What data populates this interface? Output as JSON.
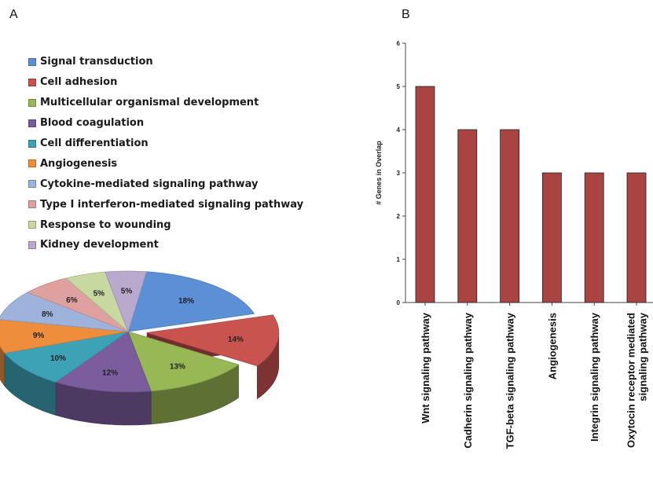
{
  "panel_a_label": "A",
  "panel_b_label": "B",
  "chart_data": [
    {
      "type": "pie",
      "style": "3d-exploded",
      "legend_position": "top",
      "slices": [
        {
          "label": "Signal transduction",
          "value": 18,
          "text": "18%",
          "color": "#5b8fd6"
        },
        {
          "label": "Cell adhesion",
          "value": 14,
          "text": "14%",
          "color": "#c9534f"
        },
        {
          "label": "Multicellular organismal development",
          "value": 13,
          "text": "13%",
          "color": "#98b755"
        },
        {
          "label": "Blood coagulation",
          "value": 12,
          "text": "12%",
          "color": "#7b5d9e"
        },
        {
          "label": "Cell differentiation",
          "value": 10,
          "text": "10%",
          "color": "#3ea2b6"
        },
        {
          "label": "Angiogenesis",
          "value": 9,
          "text": "9%",
          "color": "#ee8e3c"
        },
        {
          "label": "Cytokine-mediated signaling pathway",
          "value": 8,
          "text": "8%",
          "color": "#9db3dc"
        },
        {
          "label": "Type I interferon-mediated signaling pathway",
          "value": 6,
          "text": "6%",
          "color": "#dea19f"
        },
        {
          "label": "Response to wounding",
          "value": 5,
          "text": "5%",
          "color": "#c7d9a0"
        },
        {
          "label": "Kidney development",
          "value": 5,
          "text": "5%",
          "color": "#b8a9cd"
        }
      ]
    },
    {
      "type": "bar",
      "categories": [
        "Wnt signaling pathway",
        "Cadherin signaling pathway",
        "TGF-beta signaling pathway",
        "Angiogenesis",
        "Integrin signaling pathway",
        "Oxytocin receptor mediated signaling pathway"
      ],
      "category_lines": [
        [
          "Wnt signaling pathway"
        ],
        [
          "Cadherin signaling pathway"
        ],
        [
          "TGF-beta signaling pathway"
        ],
        [
          "Angiogenesis"
        ],
        [
          "Integrin signaling pathway"
        ],
        [
          "Oxytocin receptor mediated",
          "signaling pathway"
        ]
      ],
      "values": [
        5,
        4,
        4,
        3,
        3,
        3
      ],
      "ylabel": "# Genes in Overlap",
      "xlabel": "",
      "ylim": [
        0,
        6
      ],
      "yticks": [
        0,
        1,
        2,
        3,
        4,
        5,
        6
      ],
      "bar_color": "#a94442",
      "grid": false
    }
  ]
}
